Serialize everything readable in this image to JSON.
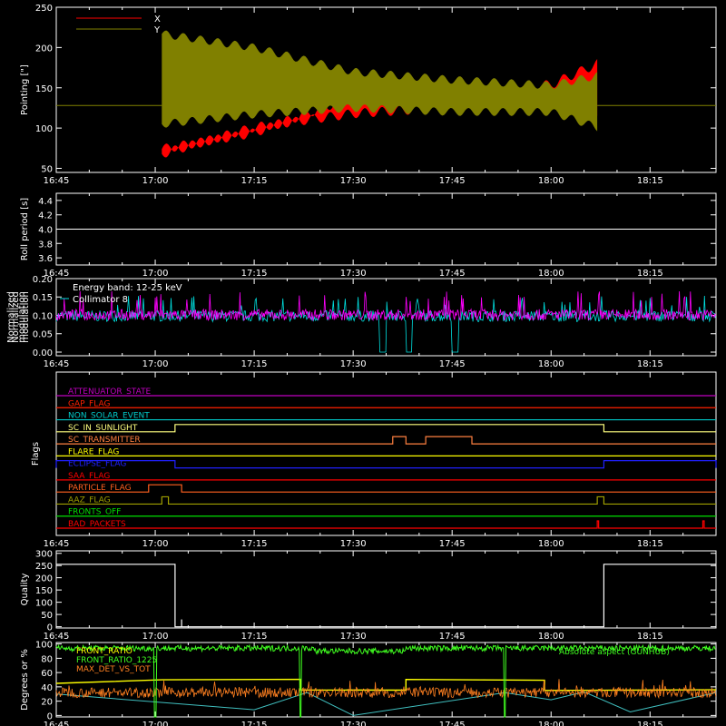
{
  "time_ticks": [
    "16:45",
    "17:00",
    "17:15",
    "17:30",
    "17:45",
    "18:00",
    "18:15"
  ],
  "chart_data": [
    {
      "id": "pointing",
      "type": "line",
      "ylabel": "Pointing [\"]",
      "ylim": [
        45,
        250
      ],
      "yticks": [
        50,
        100,
        150,
        200,
        250
      ],
      "legend_position": "top-left",
      "series": [
        {
          "name": "X",
          "color": "#ff0000"
        },
        {
          "name": "Y",
          "color": "#808000"
        }
      ],
      "x": [
        "17:01",
        "17:15",
        "17:30",
        "17:45",
        "18:00",
        "18:07"
      ],
      "x_envelope": {
        "x_center": 128,
        "x_min": [
          62,
          95,
          112,
          120,
          122,
          115
        ],
        "x_max": [
          80,
          100,
          145,
          150,
          160,
          186
        ],
        "y_center": 128,
        "y_min": [
          100,
          112,
          120,
          115,
          115,
          96
        ],
        "y_max": [
          222,
          205,
          175,
          165,
          158,
          170
        ]
      },
      "baseline_value": 128
    },
    {
      "id": "roll",
      "type": "line",
      "ylabel": "Roll period [s]",
      "ylim": [
        3.5,
        4.5
      ],
      "yticks": [
        "3.6",
        "3.8",
        "4.0",
        "4.2",
        "4.4"
      ],
      "series": [
        {
          "values_constant": 4.0,
          "color": "#ffffff"
        }
      ]
    },
    {
      "id": "modulation",
      "type": "line",
      "ylabel": "Normalized modulation",
      "ylim": [
        -0.01,
        0.2
      ],
      "yticks": [
        "0.00",
        "0.05",
        "0.10",
        "0.15",
        "0.20"
      ],
      "annotations": [
        "Energy band: 12-25 keV",
        "Collimator 8"
      ],
      "series": [
        {
          "color": "#00e0e0",
          "baseline": 0.095,
          "dropouts": [
            [
              "17:34",
              "17:35"
            ],
            [
              "17:38",
              "17:39"
            ],
            [
              "17:45",
              "17:46"
            ]
          ]
        },
        {
          "color": "#ff00ff",
          "baseline": 0.1
        }
      ]
    },
    {
      "id": "flags",
      "type": "line",
      "ylabel": "Flags",
      "series": [
        {
          "name": "ATTENUATOR_STATE",
          "color": "#c000c0",
          "segments": []
        },
        {
          "name": "GAP_FLAG",
          "color": "#ff2000",
          "segments": []
        },
        {
          "name": "NON_SOLAR_EVENT",
          "color": "#00c8c8",
          "segments": []
        },
        {
          "name": "SC_IN_SUNLIGHT",
          "color": "#ffff80",
          "segments": [
            [
              "17:03",
              "18:08"
            ]
          ]
        },
        {
          "name": "SC_TRANSMITTER",
          "color": "#ff8040",
          "segments": [
            [
              "17:36",
              "17:38"
            ],
            [
              "17:41",
              "17:48"
            ]
          ]
        },
        {
          "name": "FLARE_FLAG",
          "color": "#ffff00",
          "segments": []
        },
        {
          "name": "ECLIPSE_FLAG",
          "color": "#2020ff",
          "segments": [
            [
              "16:45",
              "17:03"
            ],
            [
              "18:08",
              "18:25"
            ]
          ]
        },
        {
          "name": "SAA_FLAG",
          "color": "#ff0000",
          "segments": []
        },
        {
          "name": "PARTICLE_FLAG",
          "color": "#ff6020",
          "segments": [
            [
              "16:59",
              "17:04"
            ]
          ]
        },
        {
          "name": "AAZ_FLAG",
          "color": "#a0a000",
          "segments": [
            [
              "17:01",
              "17:02"
            ],
            [
              "18:07",
              "18:08"
            ]
          ]
        },
        {
          "name": "FRONTS_OFF",
          "color": "#00e000",
          "segments": []
        },
        {
          "name": "BAD_PACKETS",
          "color": "#ff0000",
          "segments": [
            [
              "18:07",
              "18:07"
            ],
            [
              "18:23",
              "18:23"
            ]
          ]
        }
      ]
    },
    {
      "id": "quality",
      "type": "line",
      "ylabel": "Quality",
      "ylim": [
        -5,
        310
      ],
      "yticks": [
        0,
        50,
        100,
        150,
        200,
        250,
        300
      ],
      "series": [
        {
          "color": "#ffffff",
          "x": [
            "16:45",
            "17:03",
            "17:03",
            "18:08",
            "18:08",
            "18:25"
          ],
          "values": [
            255,
            255,
            0,
            0,
            255,
            255
          ]
        }
      ]
    },
    {
      "id": "ratios",
      "type": "line",
      "ylabel": "Degrees or %",
      "ylim": [
        -2,
        102
      ],
      "yticks": [
        0,
        20,
        40,
        60,
        80,
        100
      ],
      "annotations": [
        "Absolute aspect (GUNHUB)"
      ],
      "series": [
        {
          "name": "FRONT_RATIO",
          "color": "#ffff00"
        },
        {
          "name": "FRONT_RATIO_1225",
          "color": "#40ff20"
        },
        {
          "name": "MAX_DET_VS_TOT",
          "color": "#ff8020"
        },
        {
          "name": "",
          "color": "#40c0c0"
        }
      ]
    }
  ]
}
